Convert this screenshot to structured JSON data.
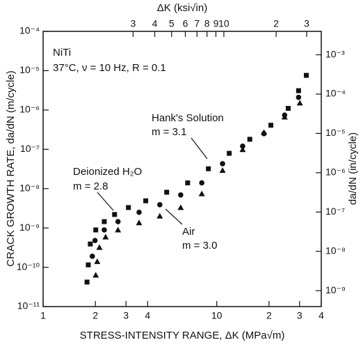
{
  "chart_data": {
    "type": "scatter",
    "xlabel": "STRESS-INTENSITY RANGE, ΔK (MPa√m)",
    "x2label": "ΔK (ksi√in)",
    "ylabel": "CRACK GROWTH RATE, da/dN (m/cycle)",
    "y2label": "da/dN (in/cycle)",
    "log_x": true,
    "log_y": true,
    "xlim": [
      1,
      40
    ],
    "xticks": [
      1,
      2,
      3,
      4,
      {
        "value": 10,
        "label": "10"
      },
      {
        "value": 20,
        "label": "2"
      },
      {
        "value": 30,
        "label": "3"
      },
      {
        "value": 40,
        "label": "4"
      }
    ],
    "x2lim": [
      0.91,
      36.4
    ],
    "x2ticks": [
      3,
      4,
      5,
      6,
      7,
      8,
      9,
      10,
      {
        "value": 20,
        "label": "2"
      },
      {
        "value": 30,
        "label": "3"
      }
    ],
    "ylim": [
      1e-11,
      0.0001
    ],
    "yticks": [
      {
        "value": 1e-11,
        "label": "10⁻¹¹"
      },
      {
        "value": 1e-10,
        "label": "10⁻¹⁰"
      },
      {
        "value": 1e-09,
        "label": "10⁻⁹"
      },
      {
        "value": 1e-08,
        "label": "10⁻⁸"
      },
      {
        "value": 1e-07,
        "label": "10⁻⁷"
      },
      {
        "value": 1e-06,
        "label": "10⁻⁶"
      },
      {
        "value": 1e-05,
        "label": "10⁻⁵"
      },
      {
        "value": 0.0001,
        "label": "10⁻⁴"
      }
    ],
    "y2lim": [
      3.937e-10,
      0.003937
    ],
    "y2ticks": [
      {
        "value": 1e-09,
        "label": "10⁻⁹"
      },
      {
        "value": 1e-08,
        "label": "10⁻⁸"
      },
      {
        "value": 1e-07,
        "label": "10⁻⁷"
      },
      {
        "value": 1e-06,
        "label": "10⁻⁶"
      },
      {
        "value": 1e-05,
        "label": "10⁻⁵"
      },
      {
        "value": 0.0001,
        "label": "10⁻⁴"
      },
      {
        "value": 0.001,
        "label": "10⁻³"
      }
    ],
    "annotations": [
      "NiTi",
      "37°C, ν = 10 Hz, R = 0.1",
      "Hank's Solution",
      "m = 3.1",
      "Deionized H₂O",
      "m = 2.8",
      "Air",
      "m = 3.0"
    ],
    "series": [
      {
        "name": "Deionized H₂O",
        "color": "#111111",
        "marker": "square",
        "x": [
          1.79,
          1.82,
          1.87,
          2.01,
          2.25,
          2.58,
          3.1,
          3.9,
          5.15,
          6.8,
          8.95,
          11.8,
          15.5,
          20.5,
          25.8,
          29.6,
          32.8
        ],
        "values": [
          4.2e-11,
          1.15e-10,
          3.9e-10,
          8.9e-10,
          1.45e-09,
          2.2e-09,
          3.3e-09,
          4.9e-09,
          8.1e-09,
          1.4e-08,
          3.2e-08,
          7.9e-08,
          1.8e-07,
          4.1e-07,
          1.1e-06,
          3.1e-06,
          7.6e-06
        ]
      },
      {
        "name": "Hank's Solution",
        "color": "#111111",
        "marker": "circle",
        "x": [
          1.92,
          1.99,
          2.25,
          2.7,
          3.57,
          4.7,
          6.2,
          8.2,
          10.8,
          14.1,
          18.7,
          24.6,
          29.6
        ],
        "values": [
          1.9e-10,
          4.8e-10,
          8.9e-10,
          1.45e-09,
          2.5e-09,
          3.9e-09,
          6.9e-09,
          1.4e-08,
          4.3e-08,
          1.2e-07,
          2.5e-07,
          7.4e-07,
          2.1e-06
        ]
      },
      {
        "name": "Air",
        "color": "#111111",
        "marker": "triangle",
        "x": [
          2.01,
          2.05,
          2.11,
          2.29,
          2.7,
          3.57,
          4.7,
          6.2,
          8.2,
          10.8,
          14.1,
          18.7,
          24.6,
          30.1
        ],
        "values": [
          6.3e-11,
          1.4e-10,
          3.2e-10,
          5.9e-10,
          8.9e-10,
          1.35e-09,
          2e-09,
          3.3e-09,
          7.4e-09,
          2.9e-08,
          9.8e-08,
          2.7e-07,
          6.6e-07,
          1.5e-06
        ]
      }
    ]
  }
}
